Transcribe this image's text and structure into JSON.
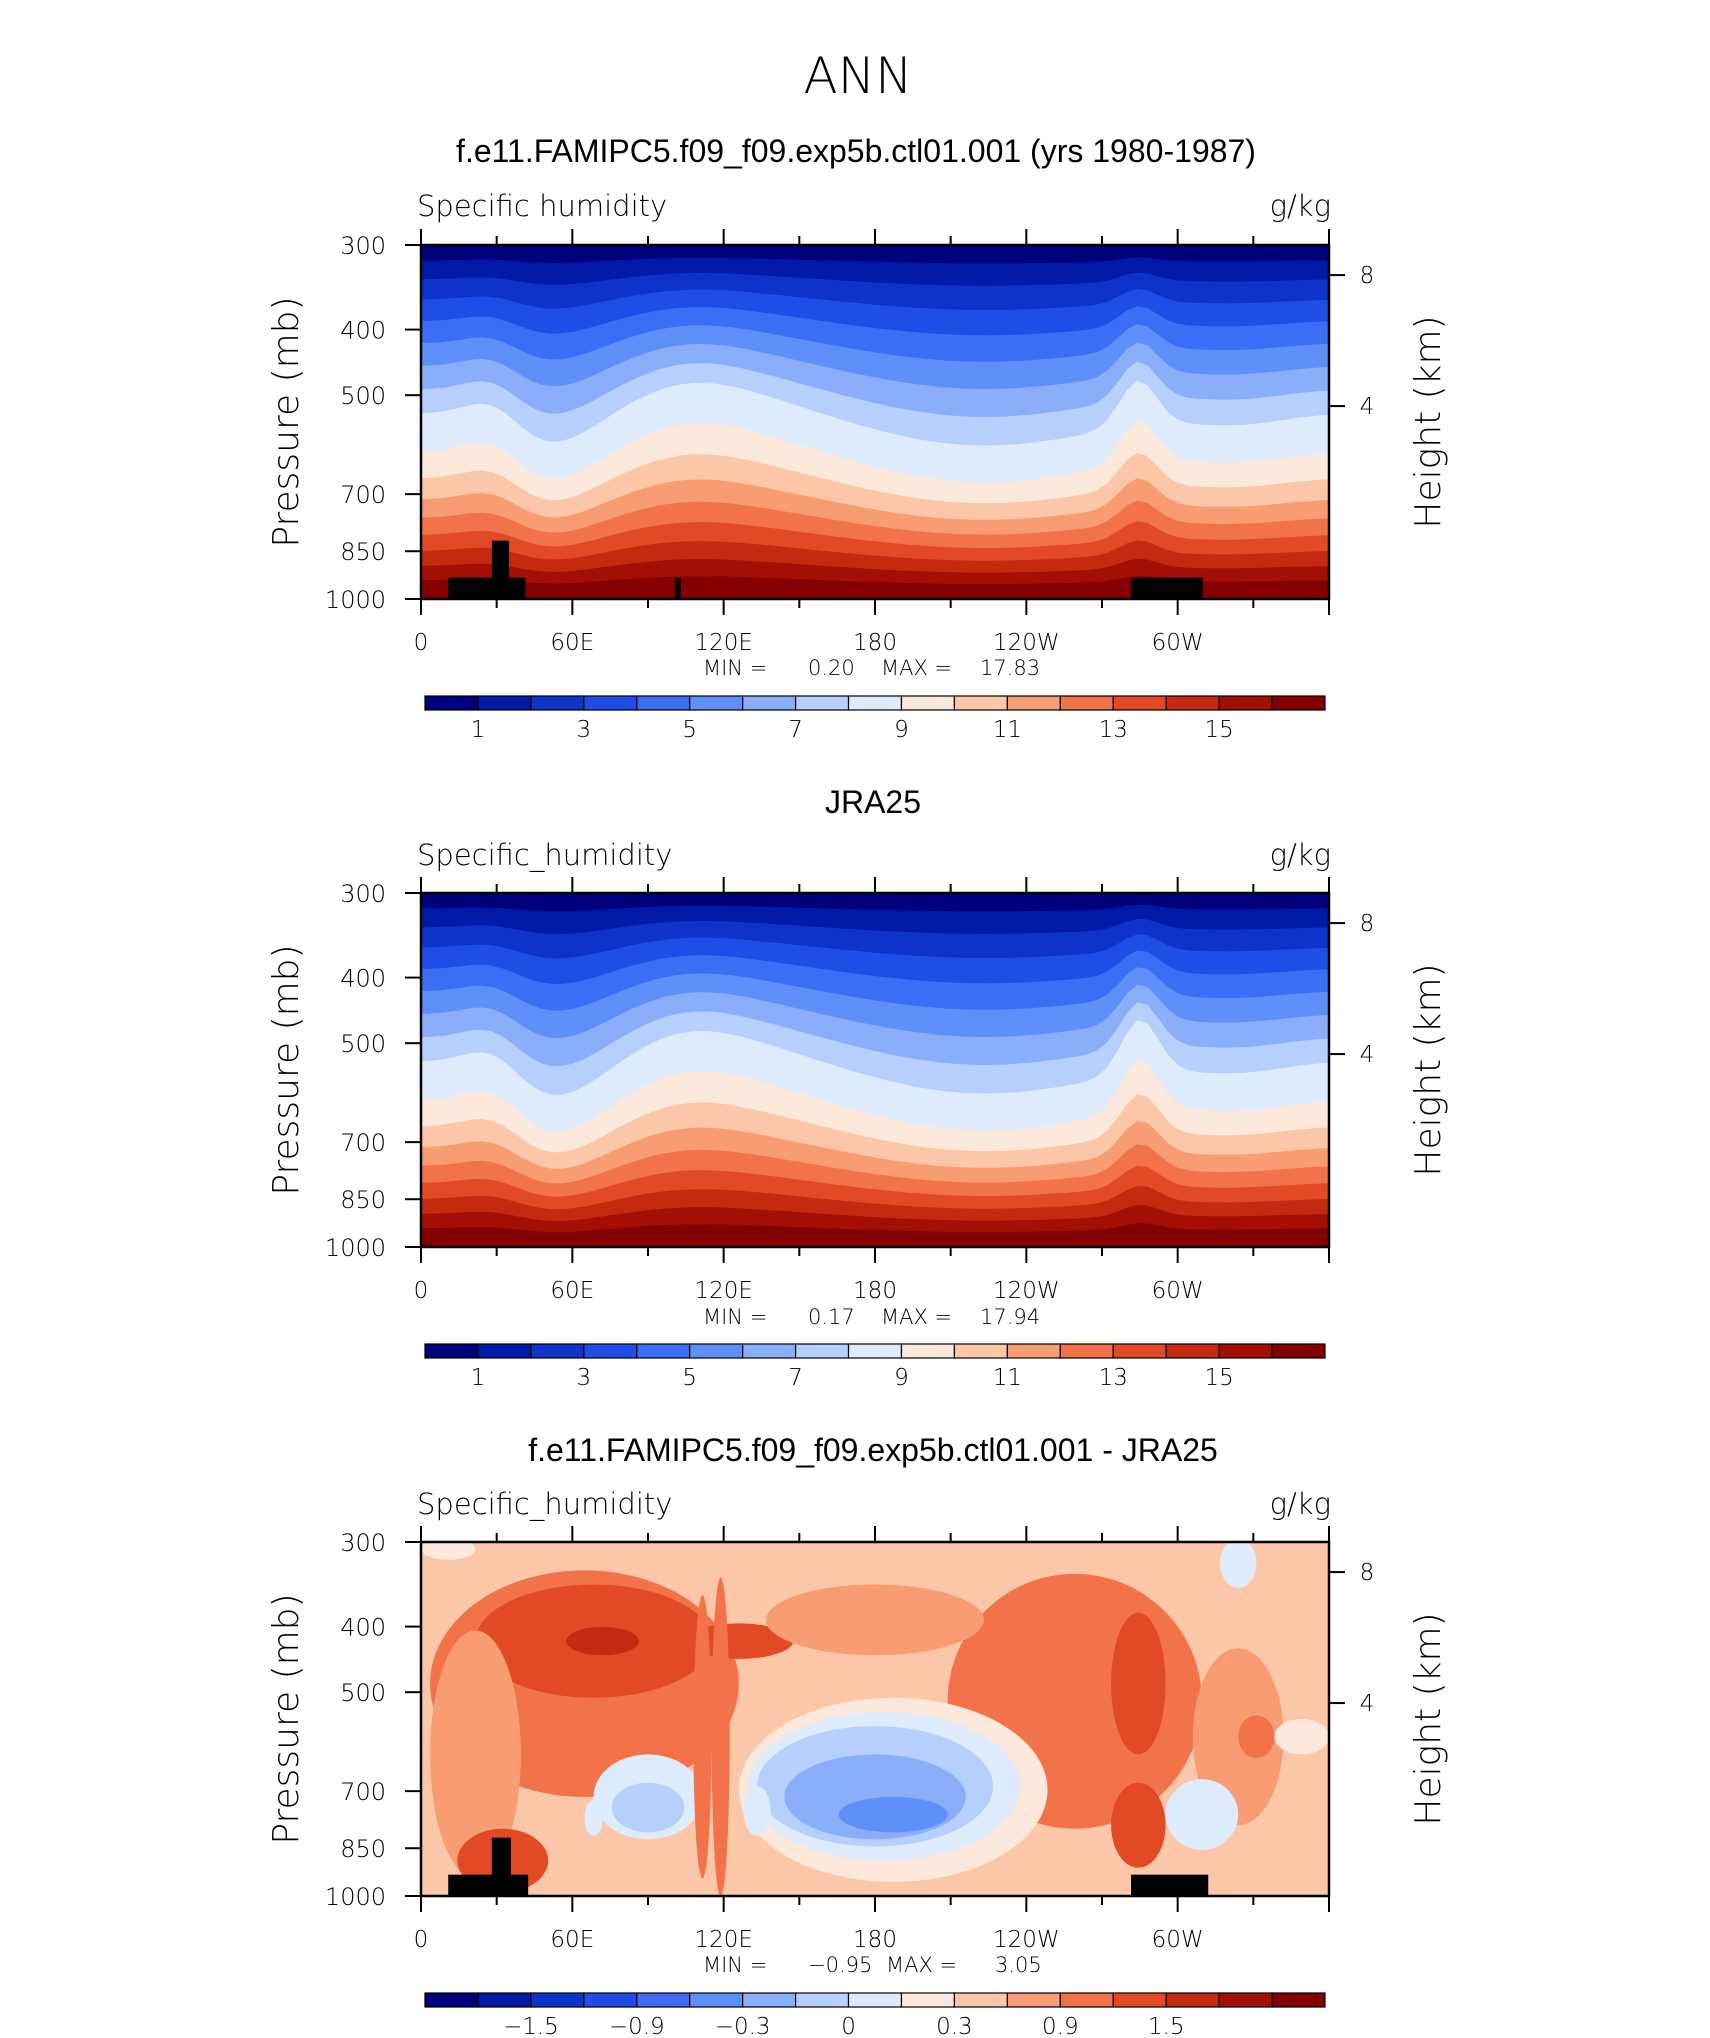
{
  "suptitle": "ANN",
  "panel_text": {
    "ylabel_left": "Pressure (mb)",
    "ylabel_right": "Height (km)",
    "units": "g/kg",
    "min_label": "MIN =",
    "max_label": "MAX ="
  },
  "chart_data": [
    {
      "type": "heatmap",
      "title": "f.e11.FAMIPC5.f09_f09.exp5b.ctl01.001 (yrs 1980-1987)",
      "variable": "Specific humidity",
      "units": "g/kg",
      "min_value": "0.20",
      "max_value": "17.83",
      "colorbar_ticks": [
        "1",
        "3",
        "5",
        "7",
        "9",
        "11",
        "13",
        "15"
      ]
    },
    {
      "type": "heatmap",
      "title": "JRA25",
      "variable": "Specific_humidity",
      "units": "g/kg",
      "min_value": "0.17",
      "max_value": "17.94",
      "colorbar_ticks": [
        "1",
        "3",
        "5",
        "7",
        "9",
        "11",
        "13",
        "15"
      ]
    },
    {
      "type": "heatmap",
      "title": "f.e11.FAMIPC5.f09_f09.exp5b.ctl01.001 - JRA25",
      "variable": "Specific_humidity",
      "units": "g/kg",
      "min_value": "−0.95",
      "max_value": "3.05",
      "colorbar_ticks": [
        "−1.5",
        "−0.9",
        "−0.3",
        "0",
        "0.3",
        "0.9",
        "1.5"
      ]
    }
  ],
  "axes": {
    "x_tick_labels": [
      "0",
      "60E",
      "120E",
      "180",
      "120W",
      "60W"
    ],
    "y_tick_labels": [
      "300",
      "400",
      "500",
      "700",
      "850",
      "1000"
    ],
    "y2_tick_labels": [
      "8",
      "4"
    ]
  },
  "colors": {
    "abs_scale": [
      "#00007f",
      "#0019a6",
      "#0d33c9",
      "#1f4de6",
      "#3b6ef5",
      "#5f8ff8",
      "#8aaefa",
      "#b7cffc",
      "#deebfd",
      "#fde9db",
      "#fcc7a9",
      "#f89d73",
      "#f2724a",
      "#e14a25",
      "#c42a10",
      "#a30f04",
      "#840000"
    ],
    "diff_scale": [
      "#00007f",
      "#0019a6",
      "#0d33c9",
      "#1f4de6",
      "#3b6ef5",
      "#5f8ff8",
      "#8aaefa",
      "#b7cffc",
      "#deebfd",
      "#fde9db",
      "#fcc7a9",
      "#f89d73",
      "#f2724a",
      "#e14a25",
      "#c42a10",
      "#a30f04",
      "#840000"
    ],
    "topography": "#000000"
  }
}
